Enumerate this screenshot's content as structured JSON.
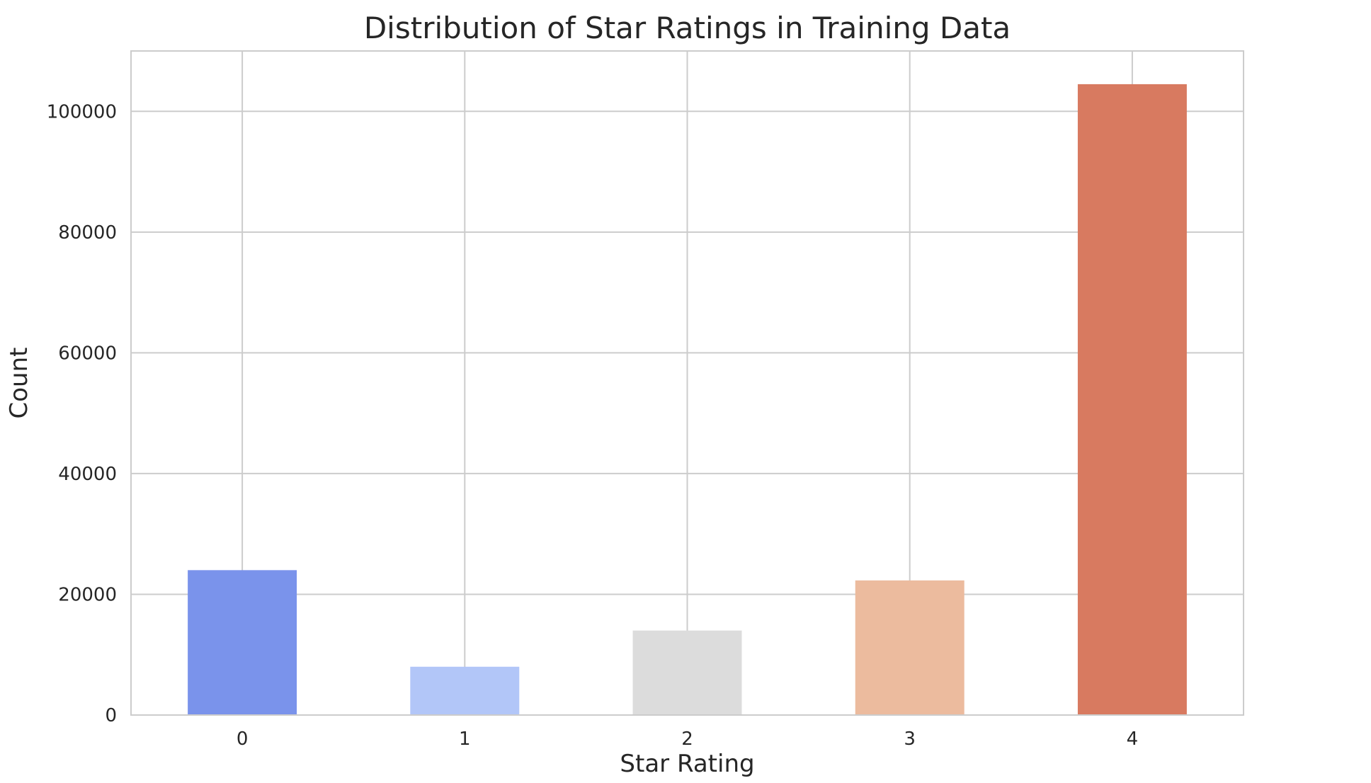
{
  "chart_data": {
    "type": "bar",
    "title": "Distribution of Star Ratings in Training Data",
    "xlabel": "Star Rating",
    "ylabel": "Count",
    "categories": [
      "0",
      "1",
      "2",
      "3",
      "4"
    ],
    "values": [
      24000,
      8000,
      14000,
      22300,
      104500
    ],
    "colors": [
      "#7a93eb",
      "#b2c6f8",
      "#dcdcdc",
      "#ecbb9e",
      "#d87a60"
    ],
    "ylim": [
      0,
      110000
    ],
    "yticks": [
      0,
      20000,
      40000,
      60000,
      80000,
      100000
    ],
    "grid": true,
    "legend": "none"
  }
}
